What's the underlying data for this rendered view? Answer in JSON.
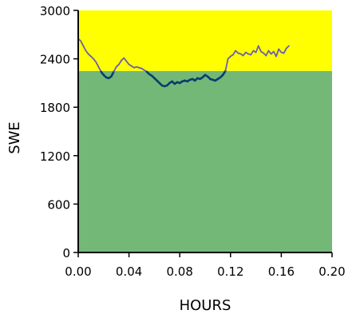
{
  "chart_data": {
    "type": "line",
    "xlabel": "HOURS",
    "ylabel": "SWE",
    "xlim": [
      0.0,
      0.2
    ],
    "ylim": [
      0,
      3000
    ],
    "x_ticks": [
      "0.00",
      "0.04",
      "0.08",
      "0.12",
      "0.16",
      "0.20"
    ],
    "y_ticks": [
      "0",
      "600",
      "1200",
      "1800",
      "2400",
      "3000"
    ],
    "x_tick_values": [
      0.0,
      0.04,
      0.08,
      0.12,
      0.16,
      0.2
    ],
    "y_tick_values": [
      0,
      600,
      1200,
      1800,
      2400,
      3000
    ],
    "grid": false,
    "bands": [
      {
        "name": "green-zone",
        "y0": 0,
        "y1": 2250,
        "color": "#74b877"
      },
      {
        "name": "yellow-zone",
        "y0": 2250,
        "y1": 3000,
        "color": "#ffff00"
      }
    ],
    "series": [
      {
        "color_above": "#6a5fb0",
        "color_below": "#0b3d6b",
        "threshold": 2250,
        "points": [
          [
            0.0,
            2650
          ],
          [
            0.002,
            2620
          ],
          [
            0.004,
            2560
          ],
          [
            0.006,
            2500
          ],
          [
            0.008,
            2460
          ],
          [
            0.01,
            2430
          ],
          [
            0.012,
            2400
          ],
          [
            0.014,
            2360
          ],
          [
            0.016,
            2300
          ],
          [
            0.018,
            2240
          ],
          [
            0.02,
            2200
          ],
          [
            0.022,
            2170
          ],
          [
            0.024,
            2160
          ],
          [
            0.026,
            2180
          ],
          [
            0.028,
            2240
          ],
          [
            0.03,
            2300
          ],
          [
            0.032,
            2330
          ],
          [
            0.034,
            2380
          ],
          [
            0.036,
            2410
          ],
          [
            0.038,
            2370
          ],
          [
            0.04,
            2330
          ],
          [
            0.042,
            2310
          ],
          [
            0.044,
            2290
          ],
          [
            0.046,
            2300
          ],
          [
            0.048,
            2290
          ],
          [
            0.05,
            2280
          ],
          [
            0.052,
            2260
          ],
          [
            0.054,
            2240
          ],
          [
            0.056,
            2210
          ],
          [
            0.058,
            2190
          ],
          [
            0.06,
            2160
          ],
          [
            0.062,
            2130
          ],
          [
            0.064,
            2100
          ],
          [
            0.066,
            2070
          ],
          [
            0.068,
            2060
          ],
          [
            0.07,
            2070
          ],
          [
            0.072,
            2100
          ],
          [
            0.074,
            2120
          ],
          [
            0.076,
            2090
          ],
          [
            0.078,
            2110
          ],
          [
            0.08,
            2100
          ],
          [
            0.082,
            2120
          ],
          [
            0.084,
            2130
          ],
          [
            0.086,
            2120
          ],
          [
            0.088,
            2140
          ],
          [
            0.09,
            2150
          ],
          [
            0.092,
            2130
          ],
          [
            0.094,
            2160
          ],
          [
            0.096,
            2150
          ],
          [
            0.098,
            2170
          ],
          [
            0.1,
            2200
          ],
          [
            0.102,
            2180
          ],
          [
            0.104,
            2150
          ],
          [
            0.106,
            2140
          ],
          [
            0.108,
            2130
          ],
          [
            0.11,
            2150
          ],
          [
            0.112,
            2170
          ],
          [
            0.114,
            2200
          ],
          [
            0.116,
            2250
          ],
          [
            0.118,
            2400
          ],
          [
            0.12,
            2430
          ],
          [
            0.122,
            2450
          ],
          [
            0.124,
            2500
          ],
          [
            0.126,
            2470
          ],
          [
            0.128,
            2460
          ],
          [
            0.13,
            2440
          ],
          [
            0.132,
            2480
          ],
          [
            0.134,
            2460
          ],
          [
            0.136,
            2450
          ],
          [
            0.138,
            2500
          ],
          [
            0.14,
            2480
          ],
          [
            0.142,
            2560
          ],
          [
            0.144,
            2490
          ],
          [
            0.146,
            2470
          ],
          [
            0.148,
            2440
          ],
          [
            0.15,
            2500
          ],
          [
            0.152,
            2460
          ],
          [
            0.154,
            2490
          ],
          [
            0.156,
            2430
          ],
          [
            0.158,
            2520
          ],
          [
            0.16,
            2480
          ],
          [
            0.162,
            2470
          ],
          [
            0.164,
            2530
          ],
          [
            0.166,
            2560
          ]
        ]
      }
    ]
  }
}
